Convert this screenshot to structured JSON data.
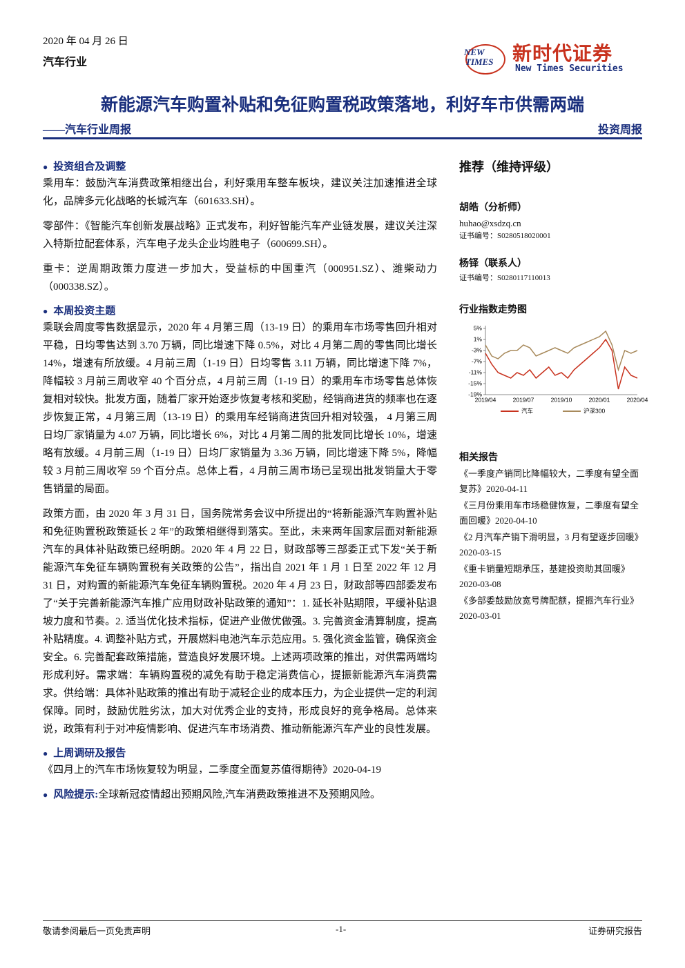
{
  "header": {
    "date": "2020 年 04 月 26 日",
    "industry": "汽车行业",
    "logo_mark_top": "NEW",
    "logo_mark_bottom": "TIMES",
    "logo_cn": "新时代证券",
    "logo_en": "New Times Securities"
  },
  "title": "新能源汽车购置补贴和免征购置税政策落地，利好车市供需两端",
  "subtitle": "——汽车行业周报",
  "report_type": "投资周报",
  "sections": [
    {
      "heading": "投资组合及调整",
      "paragraphs": [
        "乘用车：鼓励汽车消费政策相继出台，利好乘用车整车板块，建议关注加速推进全球化，品牌多元化战略的长城汽车（601633.SH）。",
        "零部件：《智能汽车创新发展战略》正式发布，利好智能汽车产业链发展，建议关注深入特斯拉配套体系，汽车电子龙头企业均胜电子（600699.SH）。",
        "重卡：逆周期政策力度进一步加大，受益标的中国重汽（000951.SZ）、潍柴动力（000338.SZ）。"
      ]
    },
    {
      "heading": "本周投资主题",
      "paragraphs": [
        "乘联会周度零售数据显示，2020 年 4 月第三周（13-19 日）的乘用车市场零售回升相对平稳，日均零售达到 3.70 万辆，同比增速下降 0.5%，对比 4 月第二周的零售同比增长 14%，增速有所放缓。4 月前三周（1-19 日）日均零售 3.11 万辆，同比增速下降 7%，降幅较 3 月前三周收窄 40 个百分点，4 月前三周（1-19 日）的乘用车市场零售总体恢复相对较快。批发方面，随着厂家开始逐步恢复考核和奖励，经销商进货的频率也在逐步恢复正常，4 月第三周（13-19 日）的乘用车经销商进货回升相对较强， 4 月第三周日均厂家销量为 4.07 万辆，同比增长 6%，对比 4 月第二周的批发同比增长 10%，增速略有放缓。4 月前三周（1-19 日）日均厂家销量为 3.36 万辆，同比增速下降 5%，降幅较 3 月前三周收窄 59 个百分点。总体上看，4 月前三周市场已呈现出批发销量大于零售销量的局面。",
        "政策方面，由 2020 年 3 月 31 日，国务院常务会议中所提出的“将新能源汽车购置补贴和免征购置税政策延长 2 年”的政策相继得到落实。至此，未来两年国家层面对新能源汽车的具体补贴政策已经明朗。2020 年 4 月 22 日，财政部等三部委正式下发“关于新能源汽车免征车辆购置税有关政策的公告”，指出自 2021 年 1 月 1 日至 2022 年 12 月 31 日，对购置的新能源汽车免征车辆购置税。2020 年 4 月 23 日，财政部等四部委发布了“关于完善新能源汽车推广应用财政补贴政策的通知”：1. 延长补贴期限，平缓补贴退坡力度和节奏。2. 适当优化技术指标，促进产业做优做强。3. 完善资金清算制度，提高补贴精度。4. 调整补贴方式，开展燃料电池汽车示范应用。5. 强化资金监管，确保资金安全。6. 完善配套政策措施，营造良好发展环境。上述两项政策的推出，对供需两端均形成利好。需求端：车辆购置税的减免有助于稳定消费信心，提振新能源汽车消费需求。供给端：具体补贴政策的推出有助于减轻企业的成本压力，为企业提供一定的利润保障。同时，鼓励优胜劣汰，加大对优秀企业的支持，形成良好的竞争格局。总体来说，政策有利于对冲疫情影响、促进汽车市场消费、推动新能源汽车产业的良性发展。"
      ]
    },
    {
      "heading": "上周调研及报告",
      "paragraphs": [
        "《四月上的汽车市场恢复较为明显，二季度全面复苏值得期待》2020-04-19"
      ]
    }
  ],
  "risk": {
    "heading": "风险提示:",
    "text": "全球新冠疫情超出预期风险,汽车消费政策推进不及预期风险。"
  },
  "sidebar": {
    "rating": "推荐（维持评级）",
    "analysts": [
      {
        "name": "胡皓（分析师）",
        "email": "huhao@xsdzq.cn",
        "cert": "证书编号：S0280518020001"
      },
      {
        "name": "杨铎（联系人）",
        "cert": "证书编号：S0280117110013"
      }
    ],
    "chart_title": "行业指数走势图",
    "related_title": "相关报告",
    "related": [
      "《一季度产销同比降幅较大，二季度有望全面复苏》2020-04-11",
      "《三月份乘用车市场稳健恢复，二季度有望全面回暖》2020-04-10",
      "《2 月汽车产销下滑明显，3 月有望逐步回暖》2020-03-15",
      "《重卡销量短期承压，基建投资助其回暖》2020-03-08",
      "《多部委鼓励放宽号牌配额，提振汽车行业》2020-03-01"
    ]
  },
  "chart_data": {
    "type": "line",
    "categories": [
      "2019/04",
      null,
      null,
      null,
      null,
      null,
      "2019/07",
      null,
      null,
      null,
      null,
      null,
      "2019/10",
      null,
      null,
      null,
      null,
      null,
      "2020/01",
      null,
      null,
      null,
      null,
      null,
      "2020/04"
    ],
    "series": [
      {
        "name": "汽车",
        "color": "#c8321e",
        "values": [
          -4,
          -8,
          -11,
          -12,
          -13,
          -11,
          -12,
          -10,
          -13,
          -11,
          -9,
          -12,
          -11,
          -13,
          -10,
          -8,
          -6,
          -4,
          -2,
          1,
          -3,
          -17,
          -9,
          -12,
          -13
        ]
      },
      {
        "name": "沪深300",
        "color": "#a88a5c",
        "values": [
          -1,
          -5,
          -6,
          -4,
          -3,
          -3,
          -1,
          -2,
          -5,
          -4,
          -3,
          -2,
          -3,
          -4,
          -2,
          -1,
          0,
          1,
          2,
          4,
          -1,
          -10,
          -3,
          -4,
          -3
        ]
      }
    ],
    "ylim": [
      -19,
      5
    ],
    "yticks": [
      {
        "value": 5,
        "label": "5%"
      },
      {
        "value": 1,
        "label": "1%"
      },
      {
        "value": -3,
        "label": "-3%"
      },
      {
        "value": -7,
        "label": "-7%"
      },
      {
        "value": -11,
        "label": "-11%"
      },
      {
        "value": -15,
        "label": "-15%"
      },
      {
        "value": -19,
        "label": "-19%"
      }
    ],
    "grid": false,
    "legend": "bottom"
  },
  "footer": {
    "left": "敬请参阅最后一页免责声明",
    "center": "-1-",
    "right": "证券研究报告"
  }
}
